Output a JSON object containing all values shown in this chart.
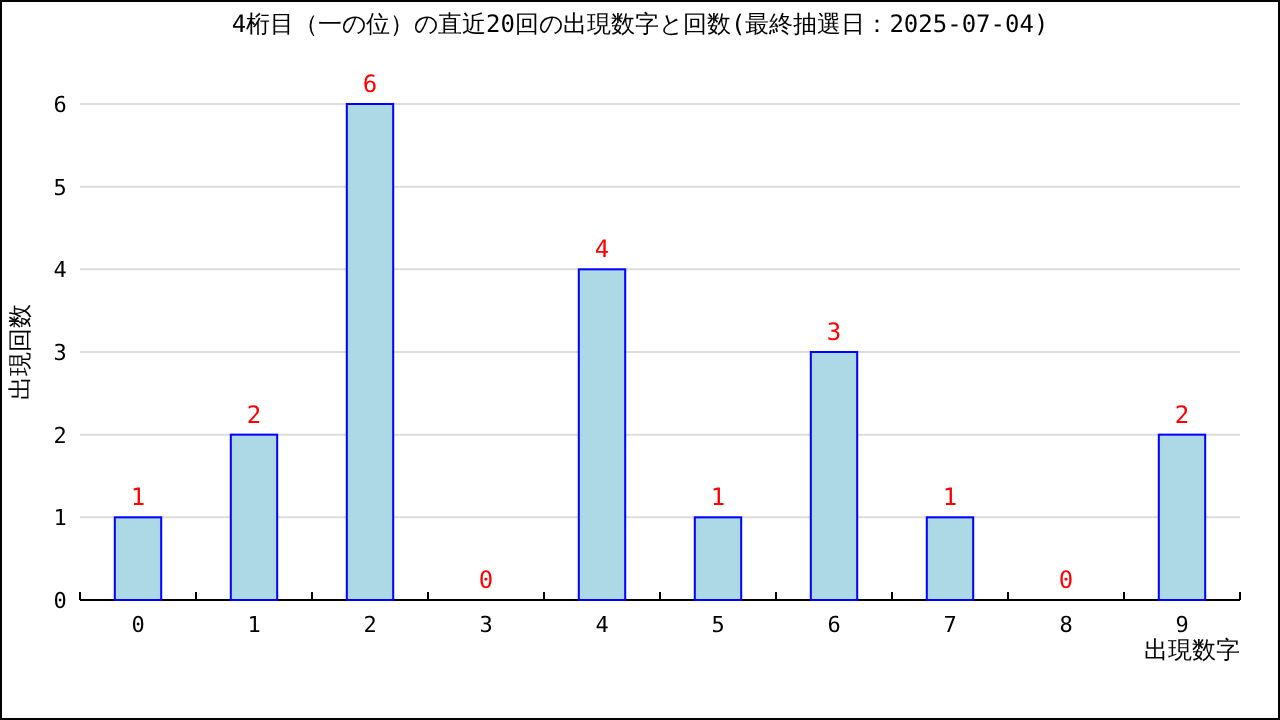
{
  "chart_data": {
    "type": "bar",
    "title": "4桁目（一の位）の直近20回の出現数字と回数(最終抽選日：2025-07-04)",
    "xlabel": "出現数字",
    "ylabel": "出現回数",
    "categories": [
      "0",
      "1",
      "2",
      "3",
      "4",
      "5",
      "6",
      "7",
      "8",
      "9"
    ],
    "series": [
      {
        "color": "#add8e6",
        "values": [
          1,
          2,
          6,
          0,
          4,
          1,
          3,
          1,
          0,
          2
        ]
      }
    ],
    "ylim": [
      0,
      6
    ],
    "yticks": [
      0,
      1,
      2,
      3,
      4,
      5,
      6
    ],
    "grid": "y",
    "data_labels": true
  }
}
